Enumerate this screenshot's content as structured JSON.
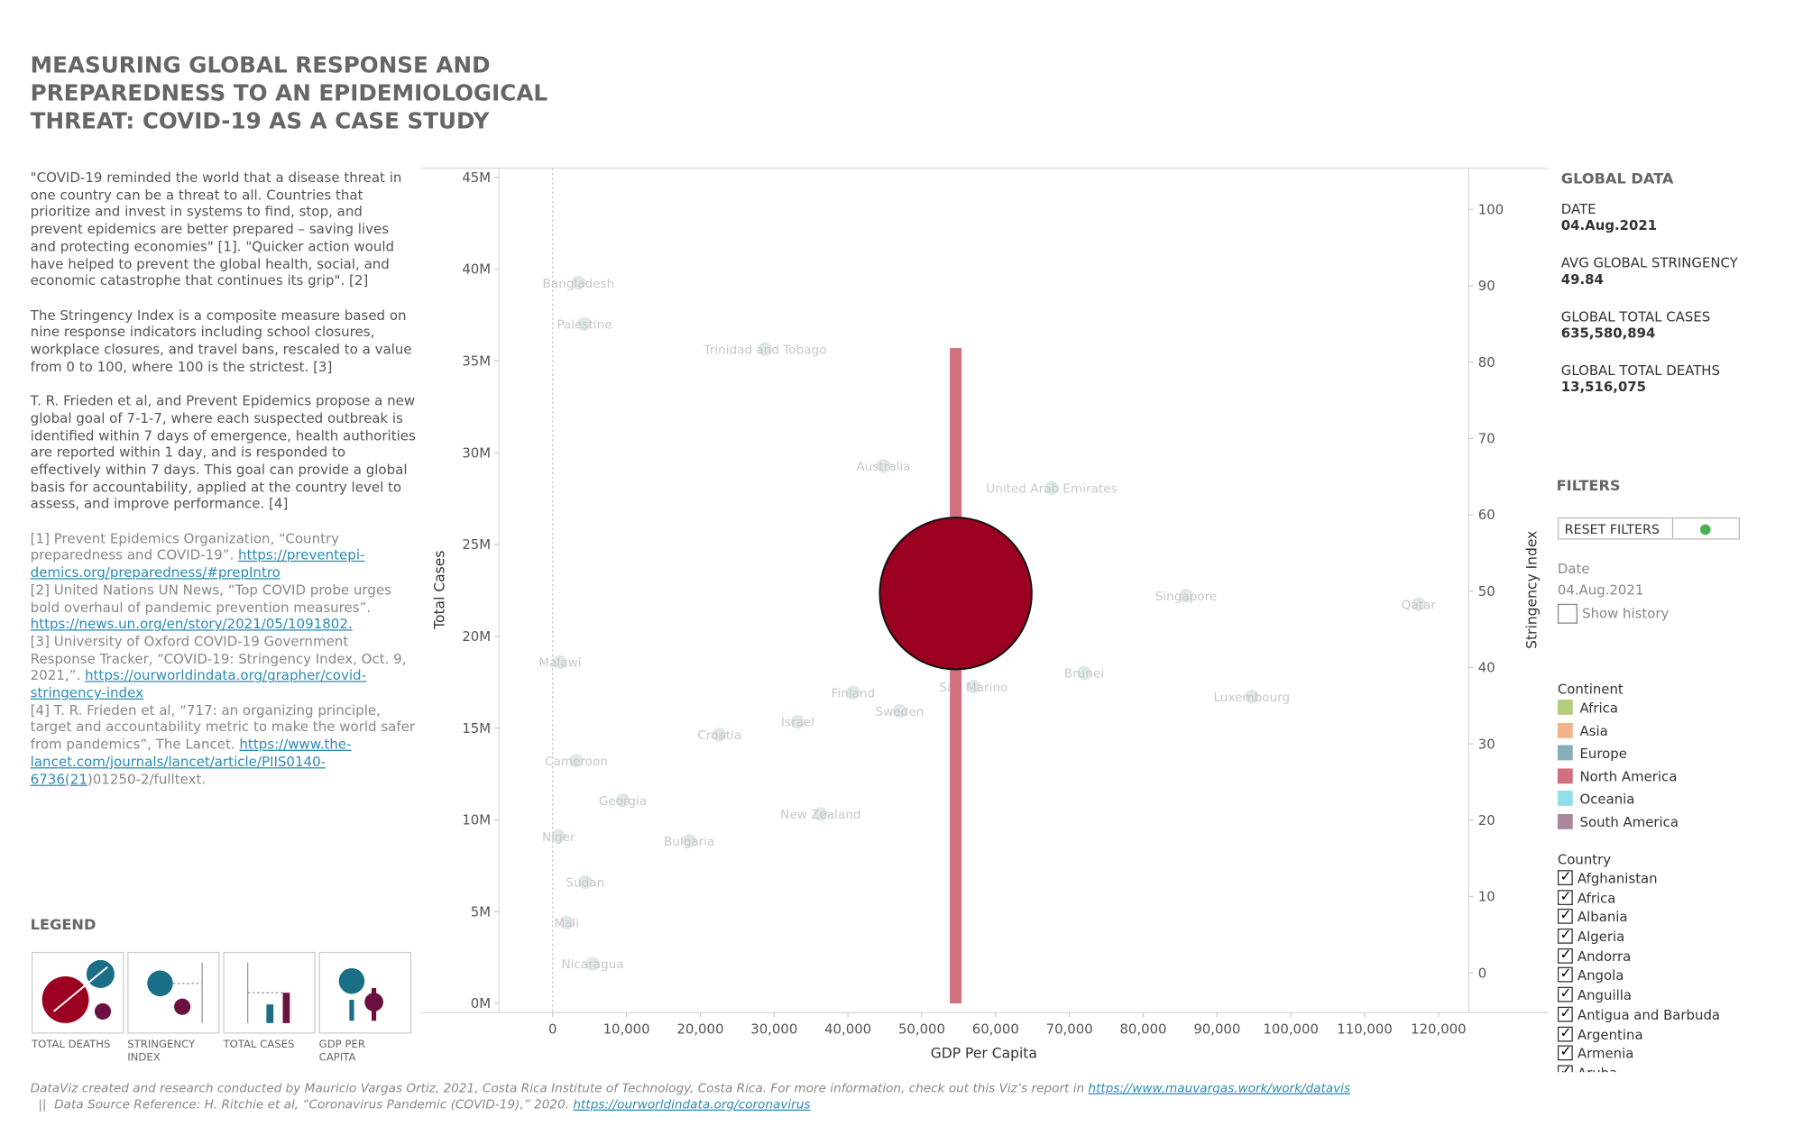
{
  "header": {
    "title": "MEASURING GLOBAL RESPONSE AND PREPAREDNESS TO AN EPIDEMIOLOGICAL THREAT: COVID-19 AS A CASE STUDY"
  },
  "intro": {
    "paragraphs": [
      "\"COVID-19 reminded the world that a disease threat in one country can be a threat to all. Countries that prioritize and invest in systems to find, stop, and prevent epidemics are better prepared – saving lives and protecting economies\" [1]. \"Quicker action would have helped to prevent the global health, social, and economic catastrophe that continues its grip\". [2]",
      "The Stringency Index is a composite measure based on nine response indicators including school closures, workplace closures, and travel bans, rescaled to a value from 0 to 100, where 100 is the strictest. [3]",
      "T. R. Frieden et al, and Prevent Epidemics propose a new global goal of 7-1-7, where each suspected outbreak is identified within 7 days of emergence, health authorities are reported within 1 day, and is responded to effectively within 7 days. This goal can provide a global basis for accountability, applied at the country level to assess, and improve performance. [4]"
    ],
    "references": [
      {
        "text": "[1] Prevent Epidemics Organization, “Country preparedness and COVID-19”. ",
        "link": "https://preventepi-demics.org/preparedness/#prepIntro"
      },
      {
        "text": "[2] United Nations UN News, “Top COVID probe urges bold overhaul of pandemic prevention measures”. ",
        "link": "https://news.un.org/en/story/2021/05/1091802."
      },
      {
        "text": "[3] University of Oxford COVID-19 Government Response Tracker, “COVID-19: Stringency Index, Oct. 9, 2021,”. ",
        "link": "https://ourworldindata.org/grapher/covid-stringency-index"
      },
      {
        "text": "[4] T. R. Frieden et al, “717: an organizing principle, target and accountability metric to make the world safer from pandemics”, The Lancet. ",
        "link": "https://www.the-lancet.com/journals/lancet/article/PIIS0140-6736(21",
        "tail": ")01250-2/fulltext."
      }
    ]
  },
  "legend": {
    "title": "LEGEND",
    "items": [
      "TOTAL DEATHS",
      "STRINGENCY INDEX",
      "TOTAL CASES",
      "GDP PER CAPITA"
    ]
  },
  "global_data": {
    "title": "GLOBAL DATA",
    "items": [
      {
        "label": "DATE",
        "value": "04.Aug.2021"
      },
      {
        "label": "AVG GLOBAL STRINGENCY",
        "value": "49.84"
      },
      {
        "label": "GLOBAL TOTAL CASES",
        "value": "635,580,894"
      },
      {
        "label": "GLOBAL TOTAL DEATHS",
        "value": "13,516,075"
      }
    ]
  },
  "filters": {
    "title": "FILTERS",
    "reset": "RESET FILTERS",
    "date_label": "Date",
    "date_value": "04.Aug.2021",
    "show_history": "Show history",
    "continent": {
      "title": "Continent",
      "items": [
        {
          "name": "Africa",
          "color": "#b3cd7e"
        },
        {
          "name": "Asia",
          "color": "#f2b387"
        },
        {
          "name": "Europe",
          "color": "#86aeb9"
        },
        {
          "name": "North America",
          "color": "#d2707f"
        },
        {
          "name": "Oceania",
          "color": "#93dcea"
        },
        {
          "name": "South America",
          "color": "#a9879f"
        }
      ]
    },
    "country": {
      "title": "Country",
      "items": [
        "Afghanistan",
        "Africa",
        "Albania",
        "Algeria",
        "Andorra",
        "Angola",
        "Anguilla",
        "Antigua and Barbuda",
        "Argentina",
        "Armenia",
        "Aruba"
      ]
    }
  },
  "footer": {
    "text": "DataViz created and research conducted by Mauricio Vargas Ortiz, 2021, Costa Rica Institute of Technology, Costa Rica. For more information, check out this Viz’s report in ",
    "link": "https://www.mauvargas.work/work/datavis",
    "text2": "  ||  Data Source Reference: H. Ritchie et al, “Coronavirus Pandemic (COVID-19),” 2020. ",
    "link2": "https://ourworldindata.org/coronavirus"
  },
  "chart_data": {
    "type": "scatter",
    "x_label": "GDP Per Capita",
    "y_label": "Total Cases",
    "y2_label": "Stringency Index",
    "xlim": [
      -7280,
      124100
    ],
    "xticks": [
      0,
      {
        "value": 10000,
        "label": "10,000"
      },
      {
        "value": 20000,
        "label": "20,000"
      },
      {
        "value": 30000,
        "label": "30,000"
      },
      {
        "value": 40000,
        "label": "40,000"
      },
      {
        "value": 50000,
        "label": "50,000"
      },
      {
        "value": 60000,
        "label": "60,000"
      },
      {
        "value": 70000,
        "label": "70,000"
      },
      {
        "value": 80000,
        "label": "80,000"
      },
      {
        "value": 90000,
        "label": "90,000"
      },
      {
        "value": 100000,
        "label": "100,000"
      },
      {
        "value": 110000,
        "label": "110,000"
      },
      {
        "value": 120000,
        "label": "120,000"
      }
    ],
    "ylim": [
      -500000,
      45500000
    ],
    "yticks": [
      {
        "value": 0,
        "label": "0M"
      },
      {
        "value": 5000000,
        "label": "5M"
      },
      {
        "value": 10000000,
        "label": "10M"
      },
      {
        "value": 15000000,
        "label": "15M"
      },
      {
        "value": 20000000,
        "label": "20M"
      },
      {
        "value": 25000000,
        "label": "25M"
      },
      {
        "value": 30000000,
        "label": "30M"
      },
      {
        "value": 35000000,
        "label": "35M"
      },
      {
        "value": 40000000,
        "label": "40M"
      },
      {
        "value": 45000000,
        "label": "45M"
      }
    ],
    "y2lim": [
      -5.2,
      105.4
    ],
    "y2ticks": [
      0,
      10,
      20,
      30,
      40,
      50,
      60,
      70,
      80,
      90,
      100
    ],
    "points": {
      "color": "#c9d8dc",
      "labels": [
        "Bangladesh",
        "Palestine",
        "Trinidad and Tobago",
        "Australia",
        "United Arab Emirates",
        "Singapore",
        "Qatar",
        "Brunei",
        "Luxembourg",
        "San Marino",
        "Finland",
        "Sweden",
        "Israel",
        "Croatia",
        "New Zealand",
        "Malawi",
        "Cameroon",
        "Georgia",
        "Bulgaria",
        "Niger",
        "Sudan",
        "Mali",
        "Nicaragua"
      ],
      "x": [
        3500,
        4300,
        28800,
        44800,
        67600,
        85800,
        117300,
        72000,
        94700,
        57000,
        40700,
        47000,
        33200,
        22600,
        36300,
        1000,
        3200,
        9500,
        18500,
        800,
        4400,
        1900,
        5400
      ],
      "values": [
        90.4,
        85.0,
        81.7,
        66.4,
        63.5,
        49.4,
        48.3,
        39.3,
        36.2,
        37.5,
        36.7,
        34.3,
        32.9,
        31.2,
        20.8,
        40.7,
        27.8,
        22.6,
        17.3,
        17.9,
        11.9,
        6.6,
        1.2
      ]
    },
    "highlight": {
      "color": "#9b0020",
      "bar_color": "#d2707f",
      "x": 54600,
      "values": 49.7,
      "cases": 35700000
    }
  }
}
